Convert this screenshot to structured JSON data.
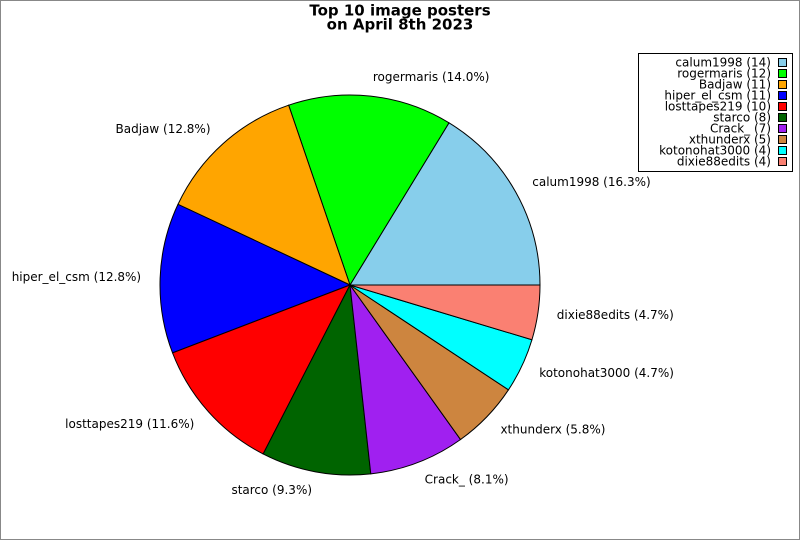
{
  "chart_data": {
    "type": "pie",
    "title": [
      "Top 10 image posters",
      "on April 8th 2023"
    ],
    "categories": [
      "calum1998",
      "rogermaris",
      "Badjaw",
      "hiper_el_csm",
      "losttapes219",
      "starco",
      "Crack_",
      "xthunderx",
      "kotonohat3000",
      "dixie88edits"
    ],
    "values": [
      14,
      12,
      11,
      11,
      10,
      8,
      7,
      5,
      4,
      4
    ],
    "value_labels": [
      "calum1998 (16.3%)",
      "rogermaris (14.0%)",
      "Badjaw (12.8%)",
      "hiper_el_csm (12.8%)",
      "losttapes219 (11.6%)",
      "starco (9.3%)",
      "Crack_ (8.1%)",
      "xthunderx (5.8%)",
      "kotonohat3000 (4.7%)",
      "dixie88edits (4.7%)"
    ],
    "legend_labels": [
      "calum1998 (14)",
      "rogermaris (12)",
      "Badjaw (11)",
      "hiper_el_csm (11)",
      "losttapes219 (10)",
      "starco (8)",
      "Crack_ (7)",
      "xthunderx (5)",
      "kotonohat3000 (4)",
      "dixie88edits (4)"
    ],
    "colors": [
      "#87ceeb",
      "#00ff00",
      "#ffa500",
      "#0000ff",
      "#ff0000",
      "#006400",
      "#a020f0",
      "#cd853f",
      "#00ffff",
      "#fa8072"
    ],
    "legend": "upper right"
  }
}
